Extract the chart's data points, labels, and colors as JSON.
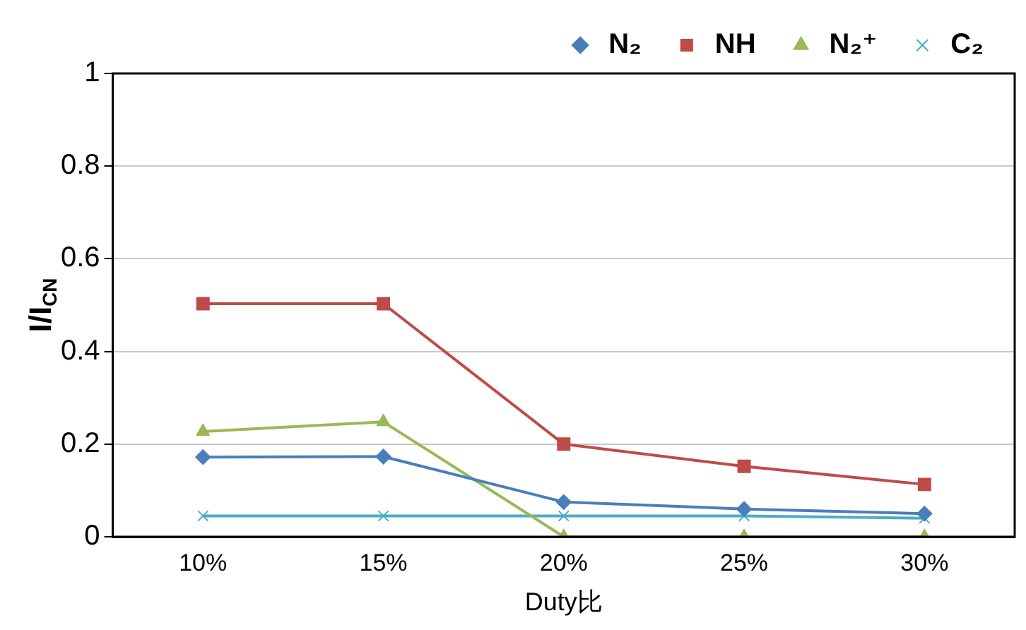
{
  "chart_data": {
    "type": "line",
    "categories": [
      "10%",
      "15%",
      "20%",
      "25%",
      "30%"
    ],
    "xlabel": "Duty比",
    "ylabel": "I/I$_{CN}$",
    "ylim": [
      0,
      1
    ],
    "yticks": [
      0,
      0.2,
      0.4,
      0.6,
      0.8,
      1
    ],
    "grid": "y",
    "legend": "top right",
    "series": [
      {
        "name": "N₂",
        "color": "#4a7ebb",
        "marker": "diamond",
        "values": [
          0.172,
          0.173,
          0.075,
          0.06,
          0.05
        ]
      },
      {
        "name": "NH",
        "color": "#be4b48",
        "marker": "square",
        "values": [
          0.503,
          0.503,
          0.2,
          0.152,
          0.113
        ]
      },
      {
        "name": "N₂⁺",
        "color": "#98b954",
        "marker": "triangle",
        "values": [
          0.227,
          0.248,
          0,
          0,
          0
        ]
      },
      {
        "name": "C₂",
        "color": "#4bacc6",
        "marker": "cross",
        "values": [
          0.045,
          0.045,
          0.045,
          0.045,
          0.04
        ]
      }
    ]
  }
}
